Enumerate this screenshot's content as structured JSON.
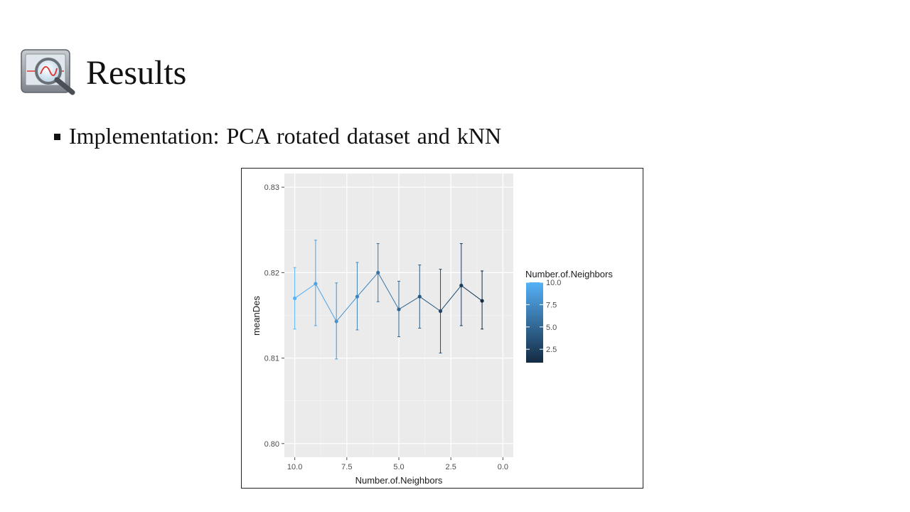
{
  "slide": {
    "title": "Results",
    "bullet": "Implementation:  PCA rotated dataset and kNN",
    "icon": "magnifier-chart-icon"
  },
  "chart_data": {
    "type": "line",
    "xlabel": "Number.of.Neighbors",
    "ylabel": "meanDes",
    "x_reversed": true,
    "xlim": [
      10.5,
      -0.5
    ],
    "ylim": [
      0.7984,
      0.8316
    ],
    "x_ticks": [
      "10.0",
      "7.5",
      "5.0",
      "2.5",
      "0.0"
    ],
    "x_tick_values": [
      10,
      7.5,
      5,
      2.5,
      0
    ],
    "y_ticks": [
      "0.80",
      "0.81",
      "0.82",
      "0.83"
    ],
    "y_tick_values": [
      0.8,
      0.81,
      0.82,
      0.83
    ],
    "grid": true,
    "panel_background": "#ebebeb",
    "x": [
      10,
      9,
      8,
      7,
      6,
      5,
      4,
      3,
      2,
      1
    ],
    "y": [
      0.817,
      0.8187,
      0.8143,
      0.8172,
      0.82,
      0.8157,
      0.8172,
      0.8155,
      0.8185,
      0.8167
    ],
    "y_upper": [
      0.8206,
      0.8238,
      0.8188,
      0.8212,
      0.8234,
      0.819,
      0.8209,
      0.8204,
      0.8234,
      0.8202
    ],
    "y_lower": [
      0.8134,
      0.8138,
      0.8099,
      0.8133,
      0.8166,
      0.8125,
      0.8135,
      0.8106,
      0.8138,
      0.8134
    ],
    "legend": {
      "title": "Number.of.Neighbors",
      "position": "right",
      "labels": [
        "10.0",
        "7.5",
        "5.0",
        "2.5"
      ],
      "values": [
        10,
        7.5,
        5,
        2.5
      ],
      "range": [
        1,
        10
      ],
      "color_low": "#132b43",
      "color_high": "#56b1f7"
    }
  }
}
